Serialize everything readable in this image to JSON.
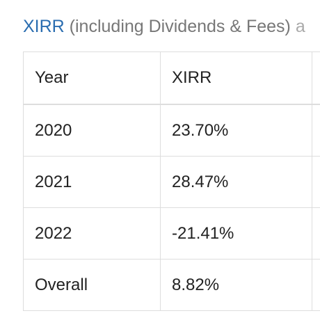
{
  "heading": {
    "link_text": "XIRR",
    "rest_text": " (including Dividends & Fees)",
    "trail_text": " a"
  },
  "table": {
    "headers": [
      "Year",
      "XIRR",
      ""
    ],
    "rows": [
      {
        "year": "2020",
        "xirr": "23.70%"
      },
      {
        "year": "2021",
        "xirr": "28.47%"
      },
      {
        "year": "2022",
        "xirr": "-21.41%"
      },
      {
        "year": "Overall",
        "xirr": "8.82%"
      }
    ]
  }
}
